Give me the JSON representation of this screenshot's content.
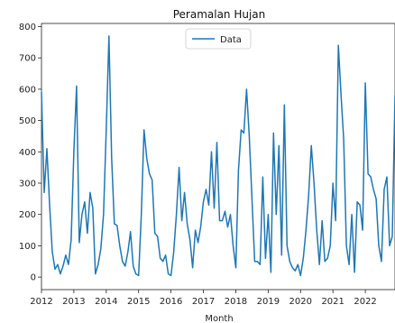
{
  "chart_data": {
    "type": "line",
    "title": "Peramalan Hujan",
    "xlabel": "Month",
    "ylabel": "",
    "xlim": [
      "2012-01-01",
      "2022-12-01"
    ],
    "ylim": [
      -40,
      810
    ],
    "x_ticks": [
      "2012",
      "2013",
      "2014",
      "2015",
      "2016",
      "2017",
      "2018",
      "2019",
      "2020",
      "2021",
      "2022"
    ],
    "y_ticks": [
      0,
      100,
      200,
      300,
      400,
      500,
      600,
      700,
      800
    ],
    "grid": false,
    "legend_position": "top-center",
    "series": [
      {
        "name": "Data",
        "color": "#1f77b4",
        "x": [
          "2012-01",
          "2012-02",
          "2012-03",
          "2012-04",
          "2012-05",
          "2012-06",
          "2012-07",
          "2012-08",
          "2012-09",
          "2012-10",
          "2012-11",
          "2012-12",
          "2013-01",
          "2013-02",
          "2013-03",
          "2013-04",
          "2013-05",
          "2013-06",
          "2013-07",
          "2013-08",
          "2013-09",
          "2013-10",
          "2013-11",
          "2013-12",
          "2014-01",
          "2014-02",
          "2014-03",
          "2014-04",
          "2014-05",
          "2014-06",
          "2014-07",
          "2014-08",
          "2014-09",
          "2014-10",
          "2014-11",
          "2014-12",
          "2015-01",
          "2015-02",
          "2015-03",
          "2015-04",
          "2015-05",
          "2015-06",
          "2015-07",
          "2015-08",
          "2015-09",
          "2015-10",
          "2015-11",
          "2015-12",
          "2016-01",
          "2016-02",
          "2016-03",
          "2016-04",
          "2016-05",
          "2016-06",
          "2016-07",
          "2016-08",
          "2016-09",
          "2016-10",
          "2016-11",
          "2016-12",
          "2017-01",
          "2017-02",
          "2017-03",
          "2017-04",
          "2017-05",
          "2017-06",
          "2017-07",
          "2017-08",
          "2017-09",
          "2017-10",
          "2017-11",
          "2017-12",
          "2018-01",
          "2018-02",
          "2018-03",
          "2018-04",
          "2018-05",
          "2018-06",
          "2018-07",
          "2018-08",
          "2018-09",
          "2018-10",
          "2018-11",
          "2018-12",
          "2019-01",
          "2019-02",
          "2019-03",
          "2019-04",
          "2019-05",
          "2019-06",
          "2019-07",
          "2019-08",
          "2019-09",
          "2019-10",
          "2019-11",
          "2019-12",
          "2020-01",
          "2020-02",
          "2020-03",
          "2020-04",
          "2020-05",
          "2020-06",
          "2020-07",
          "2020-08",
          "2020-09",
          "2020-10",
          "2020-11",
          "2020-12",
          "2021-01",
          "2021-02",
          "2021-03",
          "2021-04",
          "2021-05",
          "2021-06",
          "2021-07",
          "2021-08",
          "2021-09",
          "2021-10",
          "2021-11",
          "2021-12",
          "2022-01",
          "2022-02",
          "2022-03",
          "2022-04",
          "2022-05",
          "2022-06",
          "2022-07",
          "2022-08",
          "2022-09",
          "2022-10",
          "2022-11",
          "2022-12"
        ],
        "y": [
          590,
          270,
          410,
          230,
          80,
          25,
          40,
          10,
          35,
          70,
          40,
          120,
          400,
          610,
          110,
          200,
          240,
          140,
          270,
          220,
          10,
          40,
          90,
          200,
          470,
          770,
          380,
          170,
          165,
          100,
          50,
          35,
          80,
          145,
          35,
          10,
          5,
          200,
          470,
          380,
          330,
          310,
          140,
          130,
          60,
          50,
          70,
          10,
          5,
          80,
          200,
          350,
          180,
          270,
          170,
          120,
          30,
          150,
          110,
          160,
          240,
          280,
          230,
          400,
          220,
          430,
          180,
          180,
          210,
          160,
          200,
          100,
          30,
          340,
          470,
          460,
          600,
          450,
          250,
          50,
          50,
          40,
          320,
          60,
          200,
          15,
          460,
          200,
          420,
          70,
          550,
          100,
          50,
          30,
          20,
          40,
          5,
          60,
          150,
          260,
          420,
          300,
          150,
          40,
          180,
          50,
          60,
          100,
          300,
          180,
          740,
          580,
          440,
          100,
          40,
          200,
          15,
          240,
          230,
          150,
          620,
          330,
          320,
          280,
          250,
          100,
          50,
          280,
          320,
          100,
          130,
          580
        ]
      }
    ]
  }
}
